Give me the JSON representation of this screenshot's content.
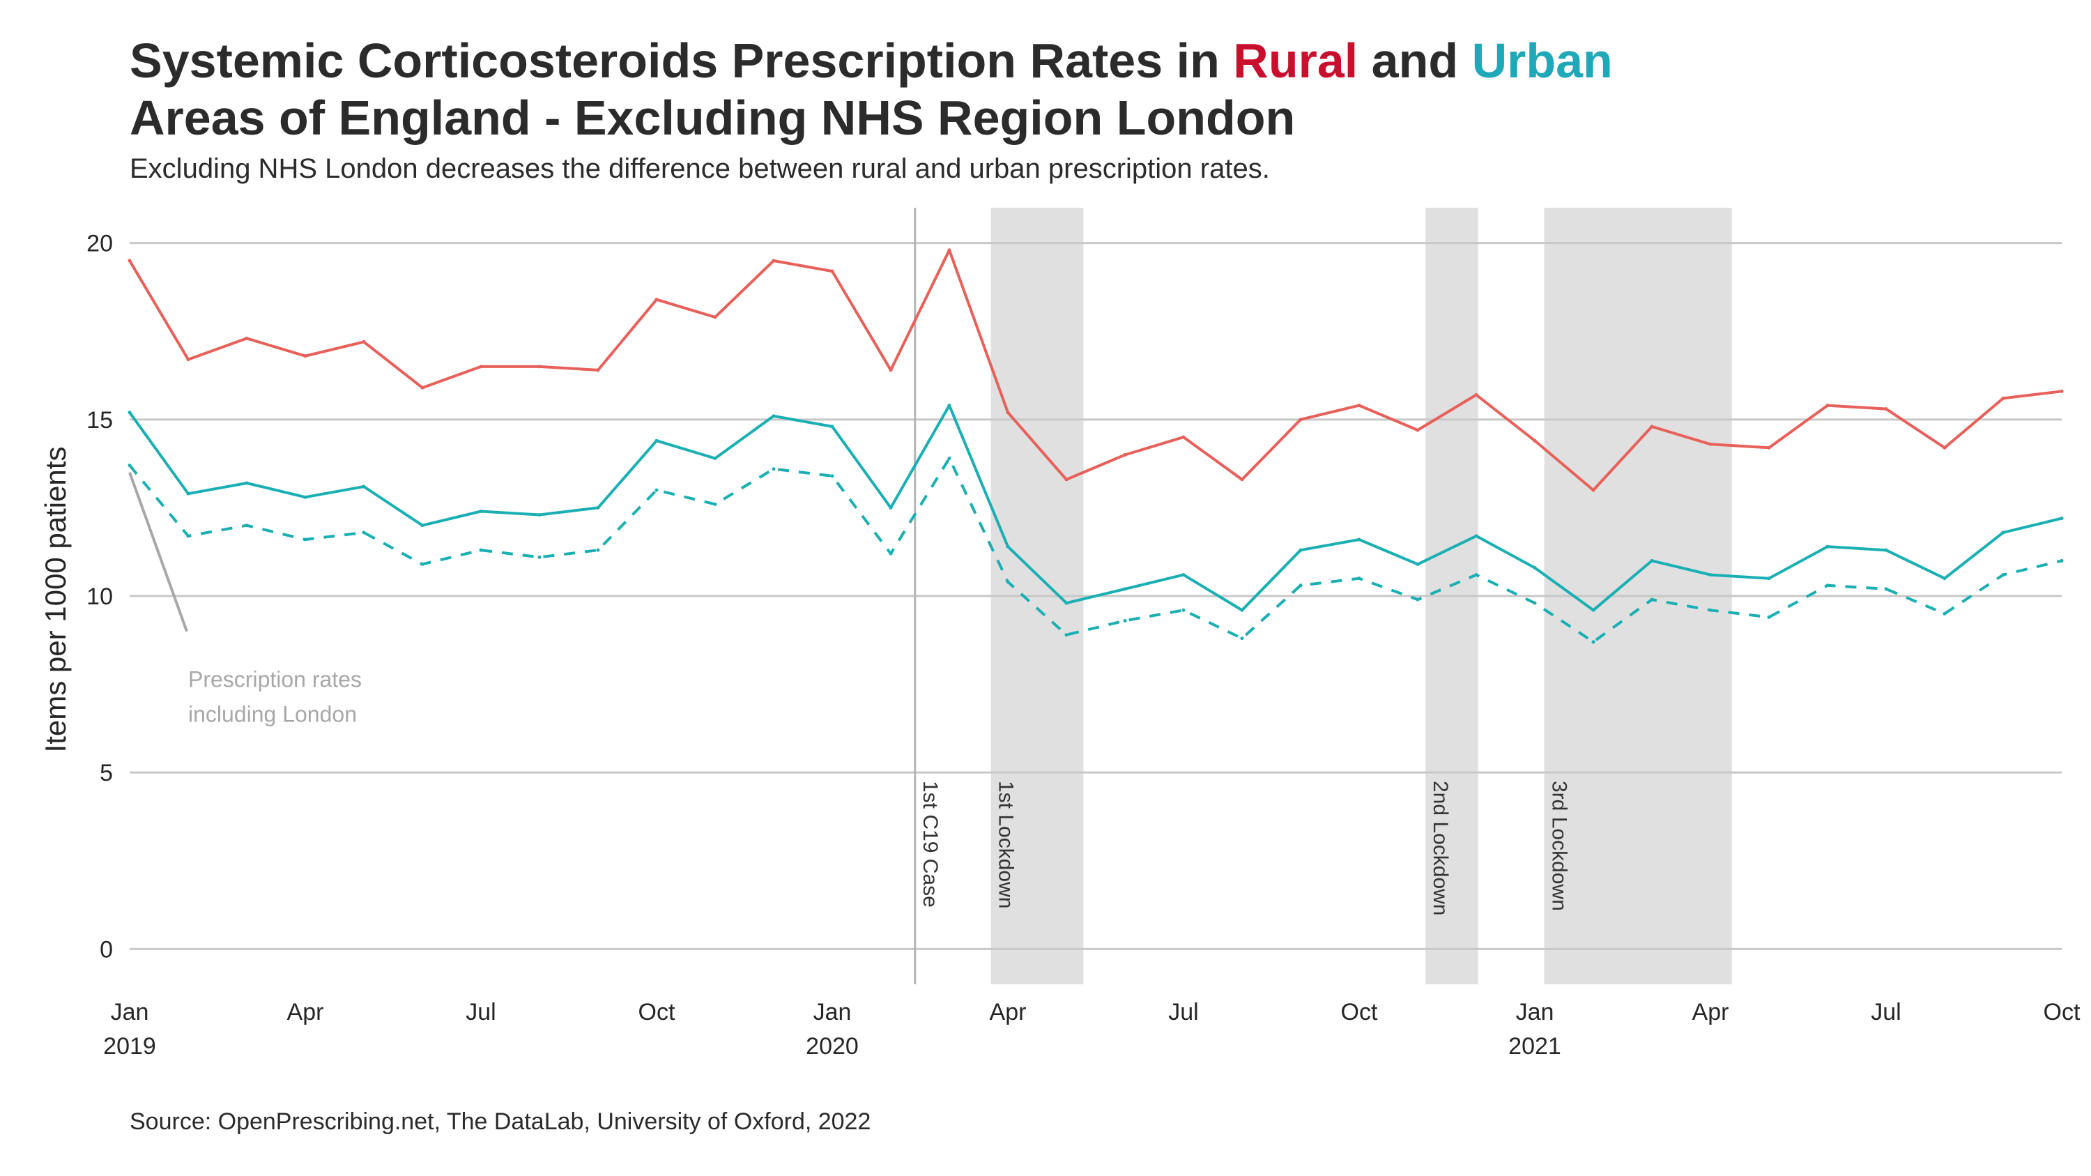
{
  "title": {
    "part1": "Systemic Corticosteroids Prescription Rates in ",
    "rural": "Rural",
    "and": " and ",
    "urban": "Urban",
    "line2": "Areas of England - Excluding NHS Region London"
  },
  "subtitle": "Excluding NHS London decreases the difference between rural and urban prescription rates.",
  "caption": "Source: OpenPrescribing.net, The DataLab, University of Oxford, 2022",
  "colors": {
    "rural_title": "#c8102e",
    "urban_title": "#1ea8b8",
    "rural_line": "#e8605a",
    "urban_line": "#1aafb3",
    "grid": "#c8c8c8",
    "shade": "#e0e0e0",
    "annotation": "#a8a8a8"
  },
  "chart_data": {
    "type": "line",
    "ylabel": "Items per 1000 patients",
    "xlabel": "",
    "ylim": [
      -1,
      21
    ],
    "yticks": [
      0,
      5,
      10,
      15,
      20
    ],
    "xlim": [
      "2019-01",
      "2021-10"
    ],
    "xticks": [
      {
        "x": "2019-01",
        "label": "Jan",
        "year": "2019"
      },
      {
        "x": "2019-04",
        "label": "Apr",
        "year": ""
      },
      {
        "x": "2019-07",
        "label": "Jul",
        "year": ""
      },
      {
        "x": "2019-10",
        "label": "Oct",
        "year": ""
      },
      {
        "x": "2020-01",
        "label": "Jan",
        "year": "2020"
      },
      {
        "x": "2020-04",
        "label": "Apr",
        "year": ""
      },
      {
        "x": "2020-07",
        "label": "Jul",
        "year": ""
      },
      {
        "x": "2020-10",
        "label": "Oct",
        "year": ""
      },
      {
        "x": "2021-01",
        "label": "Jan",
        "year": "2021"
      },
      {
        "x": "2021-04",
        "label": "Apr",
        "year": ""
      },
      {
        "x": "2021-07",
        "label": "Jul",
        "year": ""
      },
      {
        "x": "2021-10",
        "label": "Oct",
        "year": ""
      }
    ],
    "grid": true,
    "x": [
      "2019-01",
      "2019-02",
      "2019-03",
      "2019-04",
      "2019-05",
      "2019-06",
      "2019-07",
      "2019-08",
      "2019-09",
      "2019-10",
      "2019-11",
      "2019-12",
      "2020-01",
      "2020-02",
      "2020-03",
      "2020-04",
      "2020-05",
      "2020-06",
      "2020-07",
      "2020-08",
      "2020-09",
      "2020-10",
      "2020-11",
      "2020-12",
      "2021-01",
      "2021-02",
      "2021-03",
      "2021-04",
      "2021-05",
      "2021-06",
      "2021-07",
      "2021-08",
      "2021-09",
      "2021-10"
    ],
    "series": [
      {
        "name": "Rural",
        "style": "solid",
        "values": [
          19.5,
          16.7,
          17.3,
          16.8,
          17.2,
          15.9,
          16.5,
          16.5,
          16.4,
          18.4,
          17.9,
          19.5,
          19.2,
          16.4,
          19.8,
          15.2,
          13.3,
          14.0,
          14.5,
          13.3,
          15.0,
          15.4,
          14.7,
          15.7,
          14.4,
          13.0,
          14.8,
          14.3,
          14.2,
          15.4,
          15.3,
          14.2,
          15.6,
          15.8
        ]
      },
      {
        "name": "Urban",
        "style": "solid",
        "values": [
          15.2,
          12.9,
          13.2,
          12.8,
          13.1,
          12.0,
          12.4,
          12.3,
          12.5,
          14.4,
          13.9,
          15.1,
          14.8,
          12.5,
          15.4,
          11.4,
          9.8,
          10.2,
          10.6,
          9.6,
          11.3,
          11.6,
          10.9,
          11.7,
          10.8,
          9.6,
          11.0,
          10.6,
          10.5,
          11.4,
          11.3,
          10.5,
          11.8,
          12.2
        ]
      },
      {
        "style": "dashed",
        "values": [
          13.7,
          11.7,
          12.0,
          11.6,
          11.8,
          10.9,
          11.3,
          11.1,
          11.3,
          13.0,
          12.6,
          13.6,
          13.4,
          11.2,
          13.9,
          10.4,
          8.9,
          9.3,
          9.6,
          8.8,
          10.3,
          10.5,
          9.9,
          10.6,
          9.8,
          8.7,
          9.9,
          9.6,
          9.4,
          10.3,
          10.2,
          9.5,
          10.6,
          11.0
        ]
      }
    ],
    "events": [
      {
        "type": "line",
        "x": "2020-02-13",
        "label": "1st C19 Case"
      },
      {
        "type": "band",
        "x_start": "2020-03-23",
        "x_end": "2020-05-10",
        "label": "1st Lockdown"
      },
      {
        "type": "band",
        "x_start": "2020-11-05",
        "x_end": "2020-12-02",
        "label": "2nd Lockdown"
      },
      {
        "type": "band",
        "x_start": "2021-01-06",
        "x_end": "2021-04-12",
        "label": "3rd Lockdown"
      }
    ],
    "annotation": {
      "lines": [
        "Prescription rates",
        "including London"
      ],
      "points_to": {
        "x": "2019-01",
        "y": 13.5
      },
      "from": {
        "x": "2019-02",
        "y": 9.0
      }
    }
  }
}
